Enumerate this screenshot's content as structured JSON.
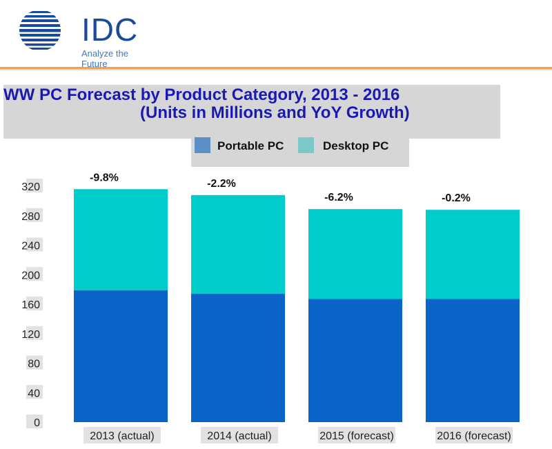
{
  "header": {
    "logo_text": "IDC",
    "logo_tagline": "Analyze the Future"
  },
  "chart_data": {
    "type": "bar",
    "stacked": true,
    "title": "WW PC Forecast by Product Category, 2013 - 2016",
    "subtitle": "(Units in Millions and YoY Growth)",
    "categories": [
      "2013 (actual)",
      "2014 (actual)",
      "2015 (forecast)",
      "2016 (forecast)"
    ],
    "series": [
      {
        "name": "Portable PC",
        "values": [
          179,
          174,
          167,
          167
        ],
        "color": "#0a64c8"
      },
      {
        "name": "Desktop PC",
        "values": [
          137,
          134,
          122,
          121
        ],
        "color": "#00cccc"
      }
    ],
    "annotations": [
      "-9.8%",
      "-2.2%",
      "-6.2%",
      "-0.2%"
    ],
    "ylim": [
      0,
      320
    ],
    "yticks": [
      "0",
      "40",
      "80",
      "120",
      "160",
      "200",
      "240",
      "280",
      "320"
    ],
    "legend_position": "top",
    "legend_swatch_colors": [
      "#5b8fc8",
      "#7cc8c8"
    ],
    "grid": false
  }
}
